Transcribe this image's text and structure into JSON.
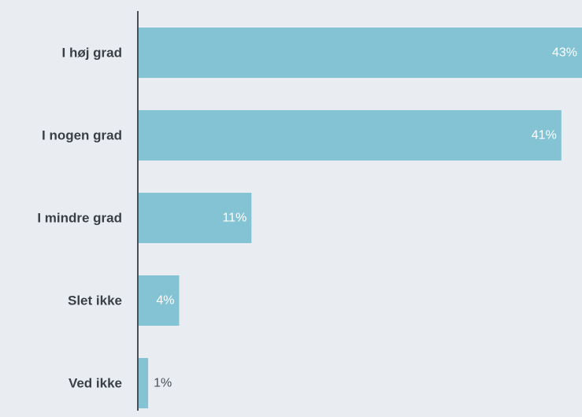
{
  "chart_data": {
    "type": "bar",
    "orientation": "horizontal",
    "categories": [
      "I høj grad",
      "I nogen grad",
      "I mindre grad",
      "Slet ikke",
      "Ved ikke"
    ],
    "values": [
      43,
      41,
      11,
      4,
      1
    ],
    "value_labels": [
      "43%",
      "41%",
      "11%",
      "4%",
      "1%"
    ],
    "unit": "%",
    "xlim": [
      0,
      43
    ],
    "grid": false,
    "legend": "none",
    "colors": {
      "bar": "#84c3d4",
      "axis": "#4a4f57",
      "label_inside": "#ffffff",
      "label_outside": "#4a4f57",
      "background": "#e9ecf0"
    }
  }
}
